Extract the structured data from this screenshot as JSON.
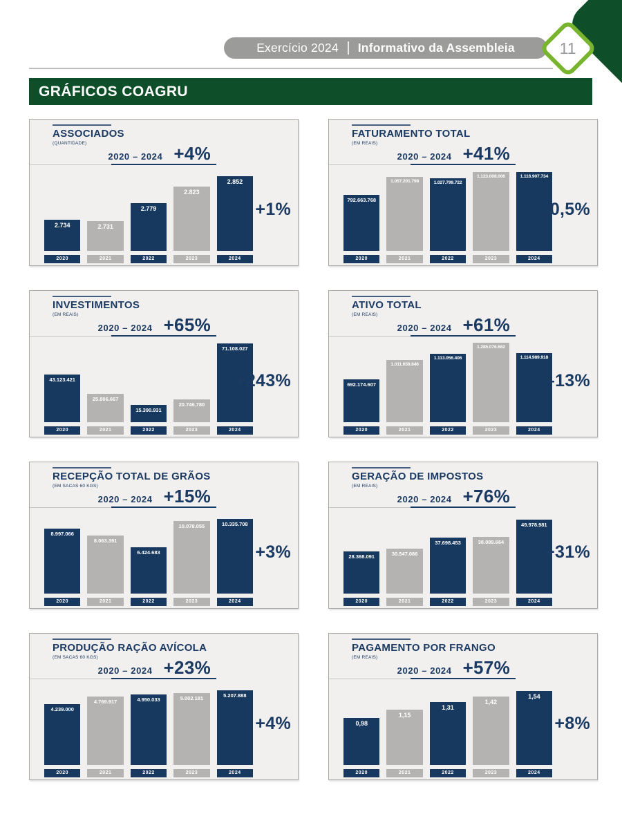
{
  "header": {
    "exercise": "Exercício 2024",
    "title": "Informativo da Assembleia",
    "page_number": "11"
  },
  "banner": {
    "label": "GRÁFICOS COAGRU"
  },
  "colors": {
    "dark_green": "#0e4f2a",
    "light_green": "#79b42f",
    "pill_gray": "#9b9b99",
    "navy_bar": "#17395f",
    "gray_bar": "#b4b3b1",
    "card_background": "#f2f0ee",
    "text_navy": "#1b3a63"
  },
  "chart_data": [
    {
      "type": "bar",
      "title": "ASSOCIADOS",
      "unit": "(QUANTIDADE)",
      "period_label": "2020 – 2024",
      "period_change": "+4%",
      "last_year_change": "+1%",
      "categories": [
        "2020",
        "2021",
        "2022",
        "2023",
        "2024"
      ],
      "values": [
        2734,
        2731,
        2779,
        2823,
        2852
      ],
      "value_labels": [
        "2.734",
        "2.731",
        "2.779",
        "2.823",
        "2.852"
      ],
      "ylim": [
        2650,
        2870
      ],
      "grid": false,
      "legend": "none"
    },
    {
      "type": "bar",
      "title": "FATURAMENTO TOTAL",
      "unit": "(EM REAIS)",
      "period_label": "2020 – 2024",
      "period_change": "+41%",
      "last_year_change": "-0,5%",
      "categories": [
        "2020",
        "2021",
        "2022",
        "2023",
        "2024"
      ],
      "values": [
        792663768,
        1057201798,
        1027799722,
        1123008006,
        1116907734
      ],
      "value_labels": [
        "792.663.768",
        "1.057.201.798",
        "1.027.799.722",
        "1.123.008.006",
        "1.116.907.734"
      ],
      "ylim": [
        0,
        1160000000
      ],
      "grid": false,
      "legend": "none"
    },
    {
      "type": "bar",
      "title": "INVESTIMENTOS",
      "unit": "(EM REAIS)",
      "period_label": "2020 – 2024",
      "period_change": "+65%",
      "last_year_change": "+243%",
      "categories": [
        "2020",
        "2021",
        "2022",
        "2023",
        "2024"
      ],
      "values": [
        43123421,
        25806667,
        15390931,
        20746780,
        71108027
      ],
      "value_labels": [
        "43.123.421",
        "25.806.667",
        "15.390.931",
        "20.746.780",
        "71.108.027"
      ],
      "ylim": [
        0,
        73500000
      ],
      "grid": false,
      "legend": "none"
    },
    {
      "type": "bar",
      "title": "ATIVO TOTAL",
      "unit": "(EM REAIS)",
      "period_label": "2020 – 2024",
      "period_change": "+61%",
      "last_year_change": "–13%",
      "categories": [
        "2020",
        "2021",
        "2022",
        "2023",
        "2024"
      ],
      "values": [
        692174607,
        1011659846,
        1113056406,
        1285076662,
        1114989918
      ],
      "value_labels": [
        "692.174.607",
        "1.011.659.846",
        "1.113.056.406",
        "1.285.076.662",
        "1.114.989.918"
      ],
      "ylim": [
        0,
        1320000000
      ],
      "grid": false,
      "legend": "none"
    },
    {
      "type": "bar",
      "title": "RECEPÇÃO TOTAL DE GRÃOS",
      "unit": "(EM SACAS 60 KGS)",
      "period_label": "2020 – 2024",
      "period_change": "+15%",
      "last_year_change": "+3%",
      "categories": [
        "2020",
        "2021",
        "2022",
        "2023",
        "2024"
      ],
      "values": [
        8997066,
        8063391,
        6424683,
        10078055,
        10335708
      ],
      "value_labels": [
        "8.997.066",
        "8.063.391",
        "6.424.683",
        "10.078.055",
        "10.335.708"
      ],
      "ylim": [
        0,
        11300000
      ],
      "grid": false,
      "legend": "none"
    },
    {
      "type": "bar",
      "title": "GERAÇÃO DE IMPOSTOS",
      "unit": "(EM REAIS)",
      "period_label": "2020 – 2024",
      "period_change": "+76%",
      "last_year_change": "+31%",
      "categories": [
        "2020",
        "2021",
        "2022",
        "2023",
        "2024"
      ],
      "values": [
        28368091,
        30547086,
        37698453,
        38089664,
        49978981
      ],
      "value_labels": [
        "28.368.091",
        "30.547.086",
        "37.698.453",
        "38.089.664",
        "49.978.981"
      ],
      "ylim": [
        0,
        55000000
      ],
      "grid": false,
      "legend": "none"
    },
    {
      "type": "bar",
      "title": "PRODUÇÃO RAÇÃO AVÍCOLA",
      "unit": "(EM SACAS 60 KGS)",
      "period_label": "2020 – 2024",
      "period_change": "+23%",
      "last_year_change": "+4%",
      "categories": [
        "2020",
        "2021",
        "2022",
        "2023",
        "2024"
      ],
      "values": [
        4239000,
        4769917,
        4950033,
        5002181,
        5207888
      ],
      "value_labels": [
        "4.239.000",
        "4.769.917",
        "4.950.033",
        "5.002.181",
        "5.207.888"
      ],
      "ylim": [
        0,
        5700000
      ],
      "grid": false,
      "legend": "none"
    },
    {
      "type": "bar",
      "title": "PAGAMENTO POR FRANGO",
      "unit": "(EM REAIS)",
      "period_label": "2020 – 2024",
      "period_change": "+57%",
      "last_year_change": "+8%",
      "categories": [
        "2020",
        "2021",
        "2022",
        "2023",
        "2024"
      ],
      "values": [
        0.98,
        1.15,
        1.31,
        1.42,
        1.54
      ],
      "value_labels": [
        "0,98",
        "1,15",
        "1,31",
        "1,42",
        "1,54"
      ],
      "ylim": [
        0,
        1.7
      ],
      "grid": false,
      "legend": "none"
    }
  ]
}
